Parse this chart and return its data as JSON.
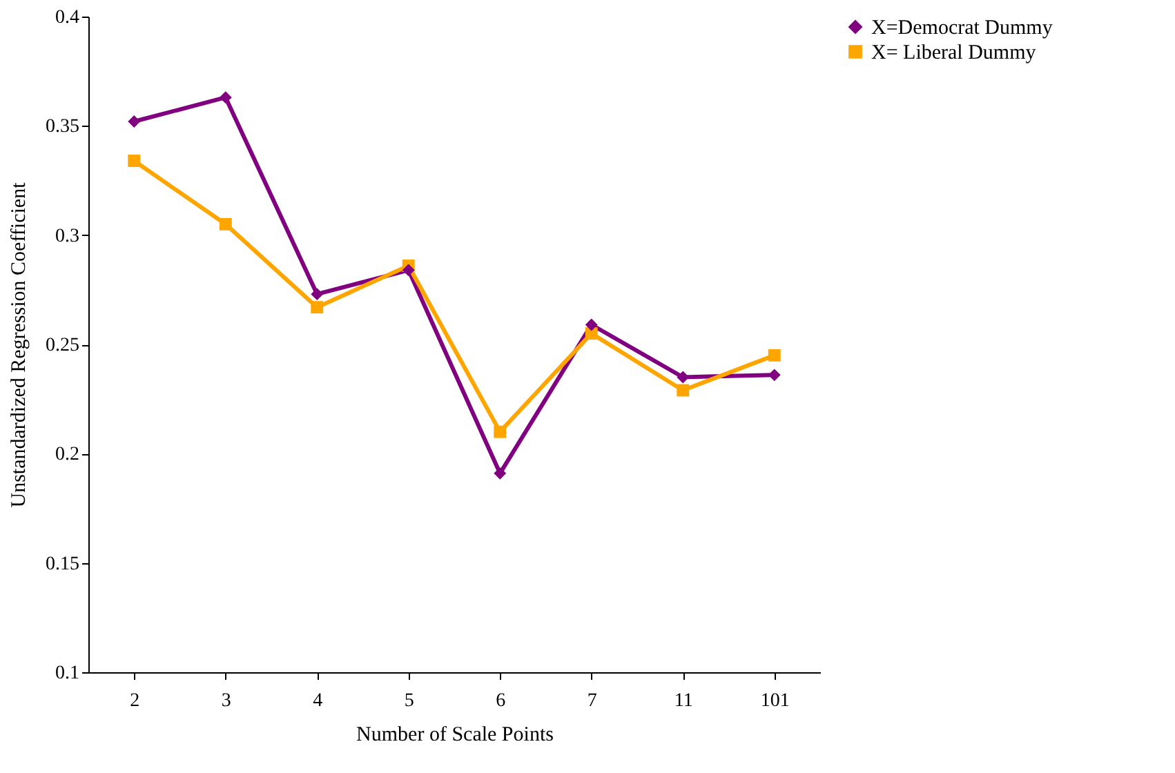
{
  "chart_data": {
    "type": "line",
    "xlabel": "Number of Scale Points",
    "ylabel": "Unstandardized Regression Coefficient",
    "categories": [
      "2",
      "3",
      "4",
      "5",
      "6",
      "7",
      "11",
      "101"
    ],
    "series": [
      {
        "name": "X=Democrat Dummy",
        "color": "#800080",
        "marker": "diamond",
        "values": [
          0.352,
          0.363,
          0.273,
          0.284,
          0.191,
          0.259,
          0.235,
          0.236
        ]
      },
      {
        "name": "X= Liberal Dummy",
        "color": "#ffa500",
        "marker": "square",
        "values": [
          0.334,
          0.305,
          0.267,
          0.286,
          0.21,
          0.255,
          0.229,
          0.245
        ]
      }
    ],
    "ylim": [
      0.1,
      0.4
    ],
    "yticks": [
      0.1,
      0.15,
      0.2,
      0.25,
      0.3,
      0.35,
      0.4
    ],
    "grid": false,
    "legend": "right"
  }
}
